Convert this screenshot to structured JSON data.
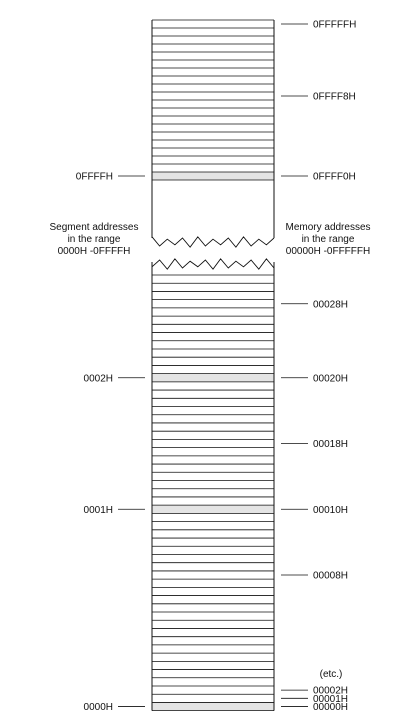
{
  "upper_rows": 20,
  "upper_highlight_rows": [
    19
  ],
  "lower_rows": 53,
  "lower_highlight_rows": [
    12,
    28,
    52
  ],
  "highlight_color": "#e4e4e4",
  "line_color": "#111111",
  "upper_right_labels": [
    {
      "row": 0,
      "text": "0FFFFFH"
    },
    {
      "row": 9,
      "text": "0FFFF8H"
    },
    {
      "row": 19,
      "text": "0FFFF0H"
    }
  ],
  "upper_left_labels": [
    {
      "row": 19,
      "text": "0FFFFH"
    }
  ],
  "lower_right_labels": [
    {
      "row": 3,
      "text": "00028H"
    },
    {
      "row": 12,
      "text": "00020H"
    },
    {
      "row": 20,
      "text": "00018H"
    },
    {
      "row": 28,
      "text": "00010H"
    },
    {
      "row": 36,
      "text": "00008H"
    },
    {
      "row": 50,
      "text": "00002H"
    },
    {
      "row": 51,
      "text": "00001H"
    },
    {
      "row": 52,
      "text": "00000H"
    }
  ],
  "lower_left_labels": [
    {
      "row": 12,
      "text": "0002H"
    },
    {
      "row": 28,
      "text": "0001H"
    },
    {
      "row": 52,
      "text": "0000H"
    }
  ],
  "etc_label": "(etc.)",
  "segment_caption": [
    "Segment addresses",
    "in the range",
    "0000H -0FFFFH"
  ],
  "memory_caption": [
    "Memory addresses",
    "in the range",
    "00000H -0FFFFFH"
  ]
}
